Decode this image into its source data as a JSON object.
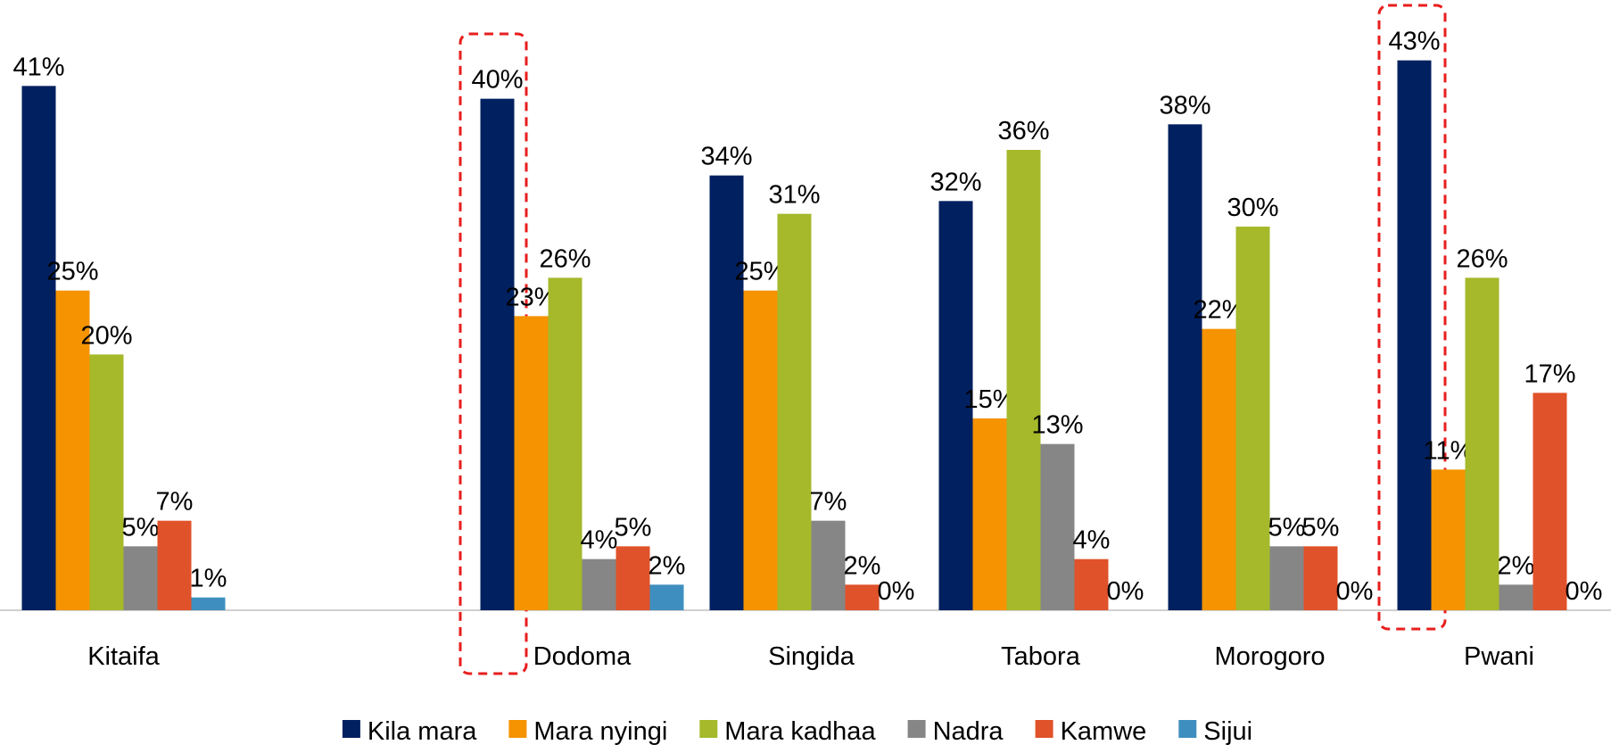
{
  "chart_data": {
    "type": "bar",
    "categories": [
      "Kitaifa",
      null,
      "Dodoma",
      "Singida",
      "Tabora",
      "Morogoro",
      "Pwani"
    ],
    "ylim": [
      0,
      45
    ],
    "legend": "bottom",
    "series": [
      {
        "name": "Kila mara",
        "color": "#002060",
        "values": [
          41,
          null,
          40,
          34,
          32,
          38,
          43
        ],
        "value_labels": [
          "41%",
          null,
          "40%",
          "34%",
          "32%",
          "38%",
          "43%"
        ]
      },
      {
        "name": "Mara nyingi",
        "color": "#f59300",
        "values": [
          25,
          null,
          23,
          25,
          15,
          22,
          11
        ],
        "value_labels": [
          "25%",
          null,
          "23%",
          "25%",
          "15%",
          "22%",
          "11%"
        ]
      },
      {
        "name": "Mara kadhaa",
        "color": "#a5b92b",
        "values": [
          20,
          null,
          26,
          31,
          36,
          30,
          26
        ],
        "value_labels": [
          "20%",
          null,
          "26%",
          "31%",
          "36%",
          "30%",
          "26%"
        ]
      },
      {
        "name": "Nadra",
        "color": "#868686",
        "values": [
          5,
          null,
          4,
          7,
          13,
          5,
          2
        ],
        "value_labels": [
          "5%",
          null,
          "4%",
          "7%",
          "13%",
          "5%",
          "2%"
        ]
      },
      {
        "name": "Kamwe",
        "color": "#e0522a",
        "values": [
          7,
          null,
          5,
          2,
          4,
          5,
          17
        ],
        "value_labels": [
          "7%",
          null,
          "5%",
          "2%",
          "4%",
          "5%",
          "17%"
        ]
      },
      {
        "name": "Sijui",
        "color": "#3e8fc0",
        "values": [
          1,
          null,
          2,
          0,
          0,
          0,
          0
        ],
        "value_labels": [
          "1%",
          null,
          "2%",
          "0%",
          "0%",
          "0%",
          "0%"
        ]
      }
    ]
  }
}
